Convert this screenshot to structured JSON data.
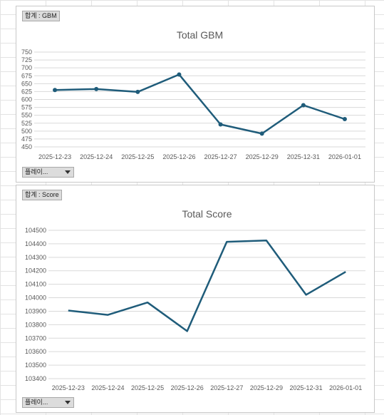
{
  "charts": [
    {
      "field_tag": "합계 : GBM",
      "filter_label": "플레이...",
      "filter_icon": "dropdown-arrow-icon"
    },
    {
      "field_tag": "합계 : Score",
      "filter_label": "플레이...",
      "filter_icon": "dropdown-arrow-icon"
    }
  ],
  "colors": {
    "line": "#1f5c7a",
    "grid": "#d9d9d9"
  },
  "chart_data": [
    {
      "type": "line",
      "title": "Total GBM",
      "categories": [
        "2025-12-23",
        "2025-12-24",
        "2025-12-25",
        "2025-12-26",
        "2025-12-27",
        "2025-12-29",
        "2025-12-31",
        "2026-01-01"
      ],
      "series": [
        {
          "values": [
            630,
            633,
            624,
            679,
            521,
            492,
            582,
            538
          ]
        }
      ],
      "markers": true,
      "ylim": [
        450,
        750
      ],
      "yticks": [
        450,
        475,
        500,
        525,
        550,
        575,
        600,
        625,
        650,
        675,
        700,
        725,
        750
      ],
      "grid": true
    },
    {
      "type": "line",
      "title": "Total Score",
      "categories": [
        "2025-12-23",
        "2025-12-24",
        "2025-12-25",
        "2025-12-26",
        "2025-12-27",
        "2025-12-29",
        "2025-12-31",
        "2026-01-01"
      ],
      "series": [
        {
          "values": [
            103905,
            103873,
            103965,
            103752,
            104415,
            104425,
            104022,
            104192
          ]
        }
      ],
      "markers": false,
      "ylim": [
        103400,
        104500
      ],
      "yticks": [
        103400,
        103500,
        103600,
        103700,
        103800,
        103900,
        104000,
        104100,
        104200,
        104300,
        104400,
        104500
      ],
      "grid": true
    }
  ]
}
